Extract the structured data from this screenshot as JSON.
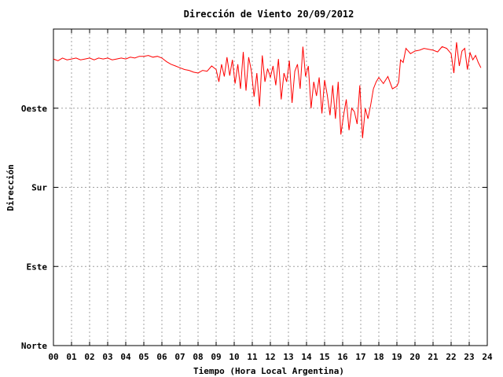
{
  "chart_data": {
    "type": "line",
    "title": "Dirección de Viento 20/09/2012",
    "xlabel": "Tiempo (Hora Local Argentina)",
    "ylabel": "Dirección",
    "x_unit": "hours",
    "xlim": [
      0,
      24
    ],
    "ylim": [
      0,
      360
    ],
    "x_ticks": [
      "00",
      "01",
      "02",
      "03",
      "04",
      "05",
      "06",
      "07",
      "08",
      "09",
      "10",
      "11",
      "12",
      "13",
      "14",
      "15",
      "16",
      "17",
      "18",
      "19",
      "20",
      "21",
      "22",
      "23",
      "24"
    ],
    "y_ticks": [
      {
        "value": 0,
        "label": "Norte"
      },
      {
        "value": 90,
        "label": "Este"
      },
      {
        "value": 180,
        "label": "Sur"
      },
      {
        "value": 270,
        "label": "Oeste"
      }
    ],
    "grid": true,
    "line_color": "#ff0000",
    "series": [
      {
        "name": "",
        "x": [
          0.0,
          0.25,
          0.5,
          0.75,
          1.0,
          1.25,
          1.5,
          1.75,
          2.0,
          2.25,
          2.5,
          2.75,
          3.0,
          3.25,
          3.5,
          3.75,
          4.0,
          4.25,
          4.5,
          4.75,
          5.0,
          5.25,
          5.5,
          5.75,
          6.0,
          6.25,
          6.5,
          6.75,
          7.0,
          7.25,
          7.5,
          7.75,
          8.0,
          8.25,
          8.5,
          8.75,
          9.0,
          9.15,
          9.3,
          9.45,
          9.6,
          9.75,
          9.9,
          10.05,
          10.2,
          10.35,
          10.5,
          10.65,
          10.8,
          10.95,
          11.1,
          11.25,
          11.4,
          11.55,
          11.7,
          11.85,
          12.0,
          12.15,
          12.3,
          12.45,
          12.6,
          12.75,
          12.9,
          13.05,
          13.2,
          13.35,
          13.5,
          13.65,
          13.8,
          13.95,
          14.1,
          14.25,
          14.4,
          14.55,
          14.7,
          14.85,
          15.0,
          15.15,
          15.3,
          15.45,
          15.6,
          15.75,
          15.9,
          16.05,
          16.2,
          16.35,
          16.5,
          16.65,
          16.8,
          16.95,
          17.1,
          17.25,
          17.4,
          17.55,
          17.7,
          17.85,
          18.0,
          18.25,
          18.5,
          18.75,
          19.0,
          19.1,
          19.2,
          19.35,
          19.5,
          19.75,
          20.0,
          20.25,
          20.5,
          20.75,
          21.0,
          21.25,
          21.5,
          21.75,
          22.0,
          22.15,
          22.3,
          22.45,
          22.6,
          22.75,
          22.9,
          23.05,
          23.2,
          23.35,
          23.5,
          23.65
        ],
        "values": [
          326,
          324,
          327,
          325,
          326,
          327,
          325,
          326,
          327,
          325,
          327,
          326,
          327,
          325,
          326,
          327,
          326,
          328,
          327,
          329,
          329,
          330,
          328,
          329,
          327,
          323,
          320,
          318,
          316,
          314,
          313,
          311,
          310,
          313,
          312,
          318,
          314,
          300,
          320,
          306,
          328,
          307,
          325,
          298,
          320,
          292,
          334,
          290,
          328,
          312,
          283,
          310,
          272,
          330,
          300,
          315,
          305,
          318,
          296,
          326,
          280,
          310,
          300,
          324,
          276,
          312,
          320,
          292,
          340,
          306,
          318,
          270,
          300,
          284,
          305,
          264,
          302,
          285,
          262,
          296,
          258,
          300,
          240,
          262,
          280,
          245,
          270,
          266,
          252,
          296,
          236,
          270,
          258,
          274,
          292,
          300,
          305,
          298,
          306,
          292,
          295,
          300,
          325,
          322,
          338,
          332,
          335,
          336,
          338,
          337,
          336,
          334,
          340,
          338,
          332,
          310,
          345,
          318,
          335,
          338,
          314,
          333,
          325,
          330,
          322,
          316
        ]
      }
    ]
  }
}
